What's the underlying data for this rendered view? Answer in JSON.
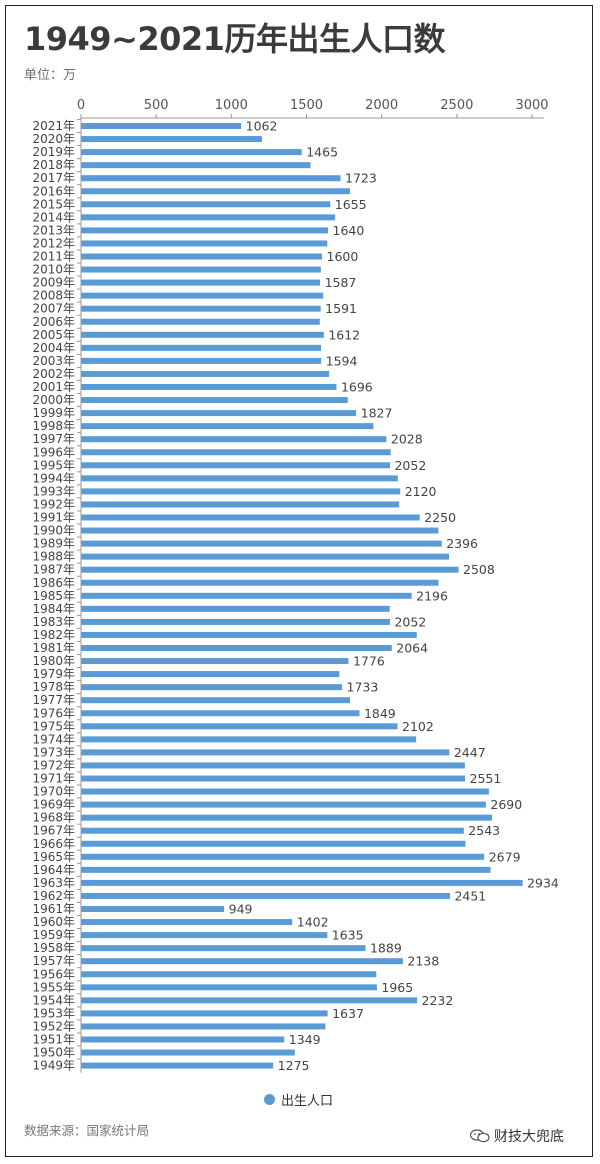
{
  "header": {
    "title": "1949~2021历年出生人口数",
    "unit": "单位：万"
  },
  "footer": {
    "source": "数据来源：国家统计局",
    "watermark": "财技大兜底",
    "watermark_icon": "wechat-icon"
  },
  "colors": {
    "bar": "#5b9bd5",
    "axis": "#999999"
  },
  "chart_data": {
    "type": "bar",
    "orientation": "horizontal",
    "title": "1949~2021历年出生人口数",
    "unit": "万",
    "xlim": [
      0,
      3000
    ],
    "xticks": [
      0,
      500,
      1000,
      1500,
      2000,
      2500,
      3000
    ],
    "x_axis_position": "top",
    "grid": false,
    "legend_position": "bottom",
    "categories": [
      "2021年",
      "2020年",
      "2019年",
      "2018年",
      "2017年",
      "2016年",
      "2015年",
      "2014年",
      "2013年",
      "2012年",
      "2011年",
      "2010年",
      "2009年",
      "2008年",
      "2007年",
      "2006年",
      "2005年",
      "2004年",
      "2003年",
      "2002年",
      "2001年",
      "2000年",
      "1999年",
      "1998年",
      "1997年",
      "1996年",
      "1995年",
      "1994年",
      "1993年",
      "1992年",
      "1991年",
      "1990年",
      "1989年",
      "1988年",
      "1987年",
      "1986年",
      "1985年",
      "1984年",
      "1983年",
      "1982年",
      "1981年",
      "1980年",
      "1979年",
      "1978年",
      "1977年",
      "1976年",
      "1975年",
      "1974年",
      "1973年",
      "1972年",
      "1971年",
      "1970年",
      "1969年",
      "1968年",
      "1967年",
      "1966年",
      "1965年",
      "1964年",
      "1963年",
      "1962年",
      "1961年",
      "1960年",
      "1959年",
      "1958年",
      "1957年",
      "1956年",
      "1955年",
      "1954年",
      "1953年",
      "1952年",
      "1951年",
      "1950年",
      "1949年"
    ],
    "series": [
      {
        "name": "出生人口",
        "values": [
          1062,
          1200,
          1465,
          1523,
          1723,
          1786,
          1655,
          1687,
          1640,
          1635,
          1600,
          1592,
          1587,
          1608,
          1591,
          1585,
          1612,
          1593,
          1594,
          1647,
          1696,
          1771,
          1827,
          1942,
          2028,
          2057,
          2052,
          2104,
          2120,
          2113,
          2250,
          2374,
          2396,
          2445,
          2508,
          2374,
          2196,
          2050,
          2052,
          2230,
          2064,
          1776,
          1715,
          1733,
          1786,
          1849,
          2102,
          2226,
          2447,
          2550,
          2551,
          2710,
          2690,
          2731,
          2543,
          2554,
          2679,
          2721,
          2934,
          2451,
          949,
          1402,
          1635,
          1889,
          2138,
          1961,
          1965,
          2232,
          1637,
          1622,
          1349,
          1419,
          1275
        ]
      }
    ],
    "data_labels": [
      {
        "category": "2021年",
        "label": "1062"
      },
      {
        "category": "2019年",
        "label": "1465"
      },
      {
        "category": "2017年",
        "label": "1723"
      },
      {
        "category": "2015年",
        "label": "1655"
      },
      {
        "category": "2013年",
        "label": "1640"
      },
      {
        "category": "2011年",
        "label": "1600"
      },
      {
        "category": "2009年",
        "label": "1587"
      },
      {
        "category": "2007年",
        "label": "1591"
      },
      {
        "category": "2005年",
        "label": "1612"
      },
      {
        "category": "2003年",
        "label": "1594"
      },
      {
        "category": "2001年",
        "label": "1696"
      },
      {
        "category": "1999年",
        "label": "1827"
      },
      {
        "category": "1997年",
        "label": "2028"
      },
      {
        "category": "1995年",
        "label": "2052"
      },
      {
        "category": "1993年",
        "label": "2120"
      },
      {
        "category": "1991年",
        "label": "2250"
      },
      {
        "category": "1989年",
        "label": "2396"
      },
      {
        "category": "1987年",
        "label": "2508"
      },
      {
        "category": "1985年",
        "label": "2196"
      },
      {
        "category": "1983年",
        "label": "2052"
      },
      {
        "category": "1981年",
        "label": "2064"
      },
      {
        "category": "1980年",
        "label": "1776"
      },
      {
        "category": "1978年",
        "label": "1733"
      },
      {
        "category": "1976年",
        "label": "1849"
      },
      {
        "category": "1975年",
        "label": "2102"
      },
      {
        "category": "1973年",
        "label": "2447"
      },
      {
        "category": "1971年",
        "label": "2551"
      },
      {
        "category": "1969年",
        "label": "2690"
      },
      {
        "category": "1967年",
        "label": "2543"
      },
      {
        "category": "1965年",
        "label": "2679"
      },
      {
        "category": "1963年",
        "label": "2934"
      },
      {
        "category": "1962年",
        "label": "2451"
      },
      {
        "category": "1961年",
        "label": "949"
      },
      {
        "category": "1960年",
        "label": "1402"
      },
      {
        "category": "1959年",
        "label": "1635"
      },
      {
        "category": "1958年",
        "label": "1889"
      },
      {
        "category": "1957年",
        "label": "2138"
      },
      {
        "category": "1955年",
        "label": "1965"
      },
      {
        "category": "1954年",
        "label": "2232"
      },
      {
        "category": "1953年",
        "label": "1637"
      },
      {
        "category": "1951年",
        "label": "1349"
      },
      {
        "category": "1949年",
        "label": "1275"
      }
    ]
  }
}
